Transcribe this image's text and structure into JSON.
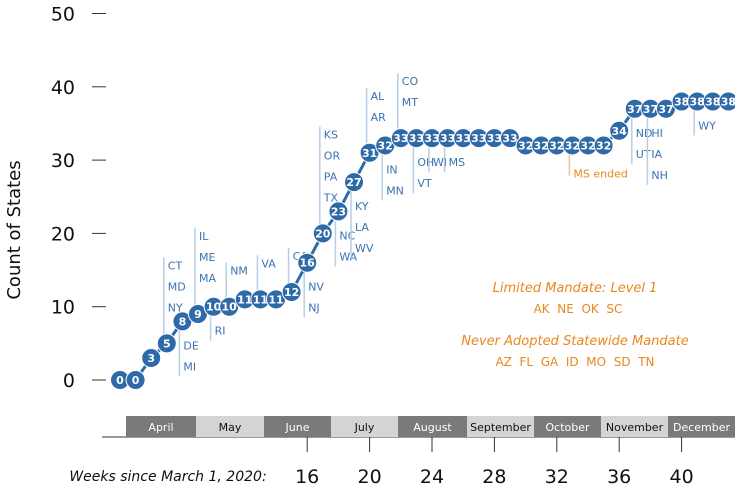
{
  "chart_data": {
    "type": "line",
    "ylabel": "Count of States",
    "ylim": [
      0,
      50
    ],
    "yticks": [
      0,
      10,
      20,
      30,
      40,
      50
    ],
    "xlabel": "Weeks since March 1, 2020:",
    "xticks": [
      16,
      20,
      24,
      28,
      32,
      36,
      40
    ],
    "x": [
      4,
      5,
      6,
      7,
      8,
      9,
      10,
      11,
      12,
      13,
      14,
      15,
      16,
      17,
      18,
      19,
      20,
      21,
      22,
      23,
      24,
      25,
      26,
      27,
      28,
      29,
      30,
      31,
      32,
      33,
      34,
      35,
      36,
      37,
      38,
      39,
      40,
      41,
      42,
      43
    ],
    "values": [
      0,
      0,
      3,
      5,
      8,
      9,
      10,
      10,
      11,
      11,
      11,
      12,
      16,
      20,
      23,
      27,
      31,
      32,
      33,
      33,
      33,
      33,
      33,
      33,
      33,
      33,
      32,
      32,
      32,
      32,
      32,
      32,
      34,
      37,
      37,
      37,
      38,
      38,
      38,
      38
    ],
    "months": [
      "April",
      "May",
      "June",
      "July",
      "August",
      "September",
      "October",
      "November",
      "December"
    ],
    "state_annotations": [
      {
        "week": 7,
        "dir": "up",
        "states": [
          "CT",
          "MD",
          "NY"
        ]
      },
      {
        "week": 8,
        "dir": "down",
        "states": [
          "DE",
          "MI"
        ]
      },
      {
        "week": 9,
        "dir": "up",
        "states": [
          "IL",
          "ME",
          "MA"
        ]
      },
      {
        "week": 10,
        "dir": "down",
        "states": [
          "RI"
        ]
      },
      {
        "week": 11,
        "dir": "up",
        "states": [
          "NM"
        ]
      },
      {
        "week": 13,
        "dir": "up",
        "states": [
          "VA"
        ]
      },
      {
        "week": 15,
        "dir": "up",
        "states": [
          "CA"
        ]
      },
      {
        "week": 16,
        "dir": "down",
        "states": [
          "NV",
          "NJ"
        ]
      },
      {
        "week": 17,
        "dir": "up",
        "states": [
          "KS",
          "OR",
          "PA",
          "TX"
        ]
      },
      {
        "week": 18,
        "dir": "down",
        "states": [
          "NC",
          "WA"
        ]
      },
      {
        "week": 19,
        "dir": "down",
        "states": [
          "KY",
          "LA",
          "WV"
        ]
      },
      {
        "week": 20,
        "dir": "up",
        "states": [
          "AL",
          "AR"
        ]
      },
      {
        "week": 21,
        "dir": "down",
        "states": [
          "IN",
          "MN"
        ]
      },
      {
        "week": 22,
        "dir": "up",
        "states": [
          "CO",
          "MT"
        ]
      },
      {
        "week": 23,
        "dir": "down",
        "states": [
          "OH",
          "VT"
        ]
      },
      {
        "week": 24,
        "dir": "down",
        "states": [
          "WI"
        ]
      },
      {
        "week": 25,
        "dir": "down",
        "states": [
          "MS"
        ]
      },
      {
        "week": 37,
        "dir": "down",
        "states": [
          "ND",
          "UT"
        ]
      },
      {
        "week": 38,
        "dir": "down",
        "states": [
          "HI",
          "IA",
          "NH"
        ]
      },
      {
        "week": 41,
        "dir": "down",
        "states": [
          "WY"
        ]
      }
    ],
    "ms_ended_label": "MS ended",
    "ms_ended_week": 33,
    "limited_title": "Limited Mandate: Level 1",
    "limited_states": "AK  NE  OK  SC",
    "never_title": "Never Adopted Statewide Mandate",
    "never_states": "AZ  FL  GA  ID  MO  SD  TN",
    "colors": {
      "line": "#2f6aa8",
      "dot": "#2f6aa8",
      "orange": "#e8871e"
    }
  }
}
